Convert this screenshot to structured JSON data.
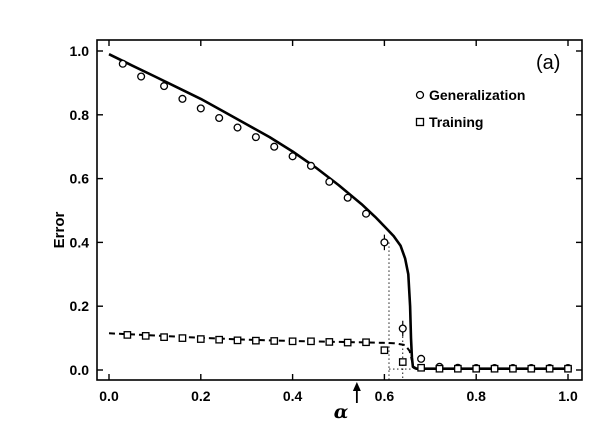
{
  "chart_data": {
    "type": "scatter",
    "panel_label": "(a)",
    "xlabel": "α",
    "ylabel": "Error",
    "xlim": [
      0.0,
      1.0
    ],
    "ylim": [
      -0.02,
      1.04
    ],
    "x_ticks": [
      "0.0",
      "0.2",
      "0.4",
      "0.6",
      "0.8",
      "1.0"
    ],
    "y_ticks": [
      "0.0",
      "0.2",
      "0.4",
      "0.6",
      "0.8",
      "1.0"
    ],
    "x_tick_values": [
      0.0,
      0.2,
      0.4,
      0.6,
      0.8,
      1.0
    ],
    "y_tick_values": [
      0.0,
      0.2,
      0.4,
      0.6,
      0.8,
      1.0
    ],
    "grid": false,
    "legend_position": "top-right",
    "colors": {
      "ink": "#000000",
      "background": "#ffffff"
    },
    "arrow_marker_x": 0.54,
    "transition_lines_x": [
      0.61,
      0.64
    ],
    "series": [
      {
        "name": "Generalization",
        "marker": "circle",
        "points": [
          {
            "x": 0.03,
            "y": 0.96
          },
          {
            "x": 0.07,
            "y": 0.92
          },
          {
            "x": 0.12,
            "y": 0.89
          },
          {
            "x": 0.16,
            "y": 0.85
          },
          {
            "x": 0.2,
            "y": 0.82
          },
          {
            "x": 0.24,
            "y": 0.79
          },
          {
            "x": 0.28,
            "y": 0.76
          },
          {
            "x": 0.32,
            "y": 0.73
          },
          {
            "x": 0.36,
            "y": 0.7
          },
          {
            "x": 0.4,
            "y": 0.67
          },
          {
            "x": 0.44,
            "y": 0.64
          },
          {
            "x": 0.48,
            "y": 0.59
          },
          {
            "x": 0.52,
            "y": 0.54
          },
          {
            "x": 0.56,
            "y": 0.49
          },
          {
            "x": 0.6,
            "y": 0.4,
            "err": 0.015
          },
          {
            "x": 0.64,
            "y": 0.13,
            "err": 0.015
          },
          {
            "x": 0.68,
            "y": 0.035
          },
          {
            "x": 0.72,
            "y": 0.01
          },
          {
            "x": 0.76,
            "y": 0.007
          },
          {
            "x": 0.8,
            "y": 0.006
          },
          {
            "x": 0.84,
            "y": 0.006
          },
          {
            "x": 0.88,
            "y": 0.006
          },
          {
            "x": 0.92,
            "y": 0.006
          },
          {
            "x": 0.96,
            "y": 0.006
          },
          {
            "x": 1.0,
            "y": 0.006
          }
        ],
        "theory": [
          [
            0.0,
            0.99
          ],
          [
            0.05,
            0.955
          ],
          [
            0.1,
            0.92
          ],
          [
            0.15,
            0.885
          ],
          [
            0.2,
            0.85
          ],
          [
            0.25,
            0.81
          ],
          [
            0.3,
            0.77
          ],
          [
            0.35,
            0.73
          ],
          [
            0.4,
            0.685
          ],
          [
            0.45,
            0.635
          ],
          [
            0.5,
            0.58
          ],
          [
            0.55,
            0.52
          ],
          [
            0.58,
            0.48
          ],
          [
            0.6,
            0.45
          ],
          [
            0.62,
            0.42
          ],
          [
            0.635,
            0.39
          ],
          [
            0.645,
            0.35
          ],
          [
            0.652,
            0.3
          ],
          [
            0.656,
            0.2
          ],
          [
            0.658,
            0.1
          ],
          [
            0.66,
            0.04
          ],
          [
            0.662,
            0.01
          ],
          [
            0.67,
            0.004
          ],
          [
            0.8,
            0.004
          ],
          [
            1.0,
            0.004
          ]
        ]
      },
      {
        "name": "Training",
        "marker": "square",
        "points": [
          {
            "x": 0.04,
            "y": 0.11
          },
          {
            "x": 0.08,
            "y": 0.107
          },
          {
            "x": 0.12,
            "y": 0.103
          },
          {
            "x": 0.16,
            "y": 0.1
          },
          {
            "x": 0.2,
            "y": 0.097
          },
          {
            "x": 0.24,
            "y": 0.095
          },
          {
            "x": 0.28,
            "y": 0.093
          },
          {
            "x": 0.32,
            "y": 0.092
          },
          {
            "x": 0.36,
            "y": 0.091
          },
          {
            "x": 0.4,
            "y": 0.09
          },
          {
            "x": 0.44,
            "y": 0.09
          },
          {
            "x": 0.48,
            "y": 0.088
          },
          {
            "x": 0.52,
            "y": 0.086
          },
          {
            "x": 0.56,
            "y": 0.087
          },
          {
            "x": 0.6,
            "y": 0.062
          },
          {
            "x": 0.64,
            "y": 0.025
          },
          {
            "x": 0.68,
            "y": 0.007
          },
          {
            "x": 0.72,
            "y": 0.004
          },
          {
            "x": 0.76,
            "y": 0.004
          },
          {
            "x": 0.8,
            "y": 0.004
          },
          {
            "x": 0.84,
            "y": 0.004
          },
          {
            "x": 0.88,
            "y": 0.004
          },
          {
            "x": 0.92,
            "y": 0.004
          },
          {
            "x": 0.96,
            "y": 0.004
          },
          {
            "x": 1.0,
            "y": 0.004
          }
        ],
        "theory": [
          [
            0.0,
            0.115
          ],
          [
            0.1,
            0.108
          ],
          [
            0.2,
            0.101
          ],
          [
            0.3,
            0.095
          ],
          [
            0.4,
            0.091
          ],
          [
            0.5,
            0.088
          ],
          [
            0.58,
            0.086
          ],
          [
            0.62,
            0.084
          ],
          [
            0.645,
            0.078
          ],
          [
            0.655,
            0.06
          ],
          [
            0.66,
            0.03
          ],
          [
            0.665,
            0.006
          ],
          [
            0.67,
            0.003
          ],
          [
            0.8,
            0.003
          ],
          [
            1.0,
            0.003
          ]
        ]
      }
    ]
  }
}
